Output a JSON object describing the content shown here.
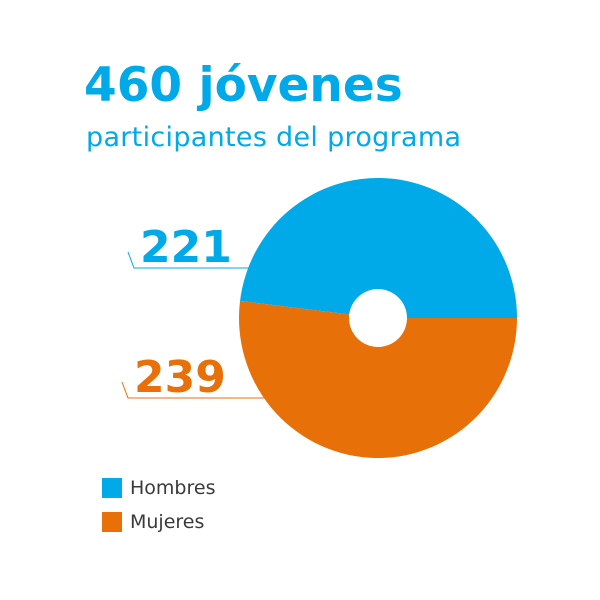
{
  "header": {
    "title": "460 jóvenes",
    "subtitle": "participantes del programa"
  },
  "colors": {
    "accent": "#00a9e8",
    "hombres": "#00a9e8",
    "mujeres": "#e87008",
    "line": "#00a9e8"
  },
  "chart_data": {
    "type": "pie",
    "total": 460,
    "categories": [
      "Hombres",
      "Mujeres"
    ],
    "values": [
      221,
      239
    ],
    "data_labels": [
      "221",
      "239"
    ],
    "legend_position": "bottom-left",
    "donut_hole": true
  }
}
